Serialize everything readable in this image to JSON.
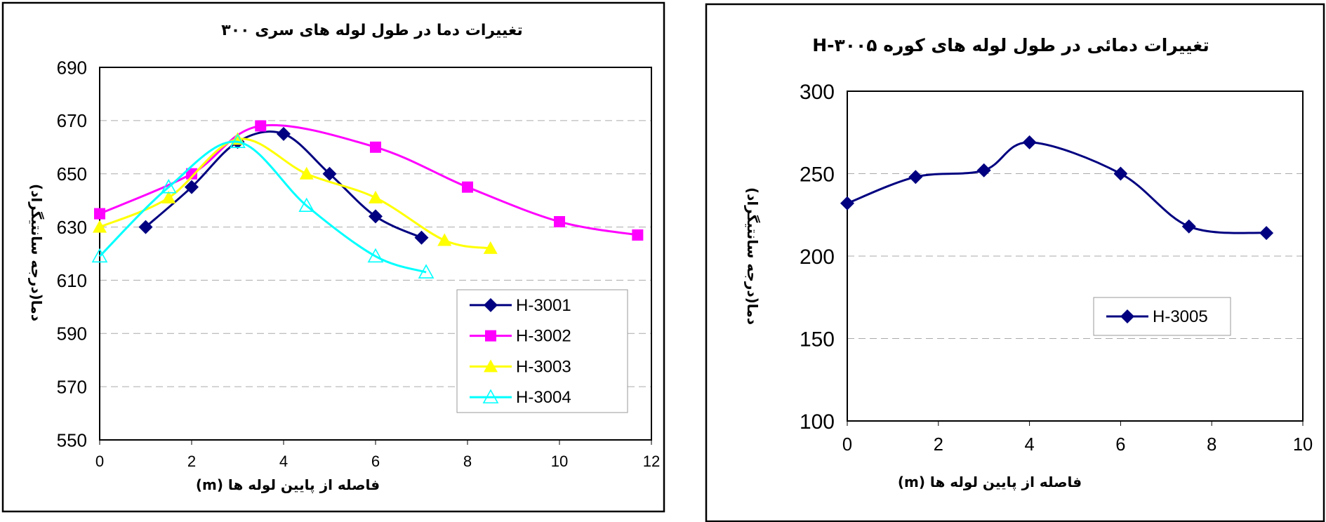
{
  "chart_data": [
    {
      "type": "line",
      "title": "تغییرات دما در طول لوله های سری ۳۰۰",
      "xlabel": "فاصله از پایین لوله ها (m)",
      "ylabel": "دما(درجه سانتیگراد)",
      "xlim": [
        0,
        12
      ],
      "ylim": [
        550,
        690
      ],
      "xticks": [
        0,
        2,
        4,
        6,
        8,
        10,
        12
      ],
      "yticks": [
        550,
        570,
        590,
        610,
        630,
        650,
        670,
        690
      ],
      "grid": "horizontal-dashed",
      "legend": "bottom-right",
      "series": [
        {
          "name": "H-3001",
          "color": "#000080",
          "marker": "diamond",
          "x": [
            1,
            2,
            3,
            4,
            5,
            6,
            7
          ],
          "y": [
            630,
            645,
            662,
            665,
            650,
            634,
            626
          ]
        },
        {
          "name": "H-3002",
          "color": "#FF00FF",
          "marker": "square",
          "x": [
            0,
            2,
            3.5,
            6,
            8,
            10,
            11.7
          ],
          "y": [
            635,
            650,
            668,
            660,
            645,
            632,
            627
          ]
        },
        {
          "name": "H-3003",
          "color": "#FFFF00",
          "marker": "triangle",
          "x": [
            0,
            1.5,
            3,
            4.5,
            6,
            7.5,
            8.5
          ],
          "y": [
            630,
            641,
            663,
            650,
            641,
            625,
            622
          ]
        },
        {
          "name": "H-3004",
          "color": "#00FFFF",
          "marker": "triangle-open",
          "x": [
            0,
            1.5,
            3,
            4.5,
            6,
            7.1
          ],
          "y": [
            619,
            645,
            662,
            638,
            619,
            613
          ]
        }
      ]
    },
    {
      "type": "line",
      "title": "تغییرات دمائی در طول لوله های کوره H-۳۰۰۵",
      "xlabel": "فاصله از پایین لوله ها (m)",
      "ylabel": "دما(درجه سانتیگراد)",
      "xlim": [
        0,
        10
      ],
      "ylim": [
        100,
        300
      ],
      "xticks": [
        0,
        2,
        4,
        6,
        8,
        10
      ],
      "yticks": [
        100,
        150,
        200,
        250,
        300
      ],
      "grid": "horizontal-dashed",
      "legend": "right",
      "series": [
        {
          "name": "H-3005",
          "color": "#000080",
          "marker": "diamond",
          "x": [
            0,
            1.5,
            3,
            4,
            6,
            7.5,
            9.2
          ],
          "y": [
            232,
            248,
            252,
            269,
            250,
            218,
            214
          ]
        }
      ]
    }
  ]
}
